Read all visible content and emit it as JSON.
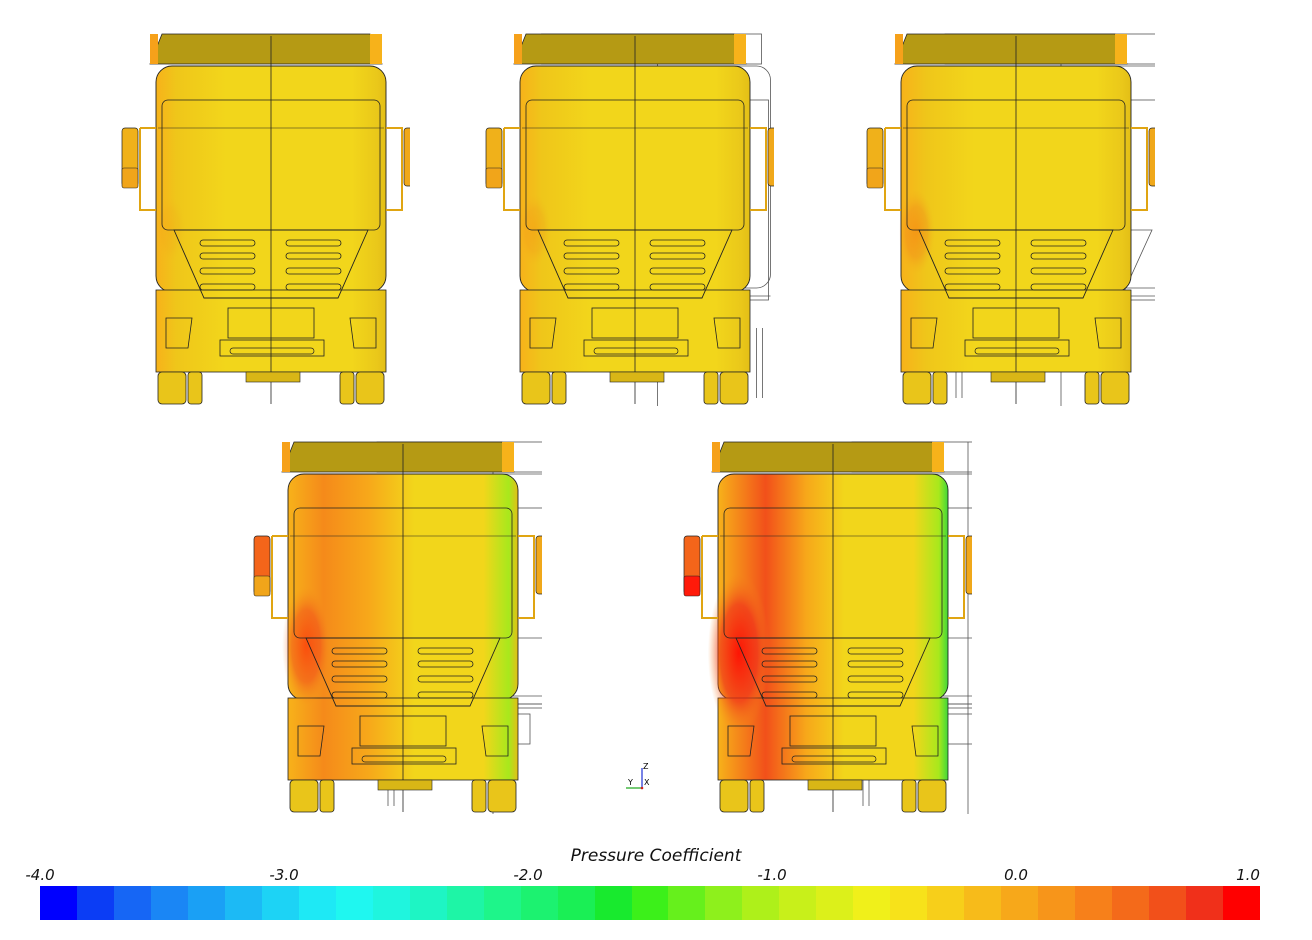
{
  "legend": {
    "title": "Pressure Coefficient",
    "ticks": [
      {
        "value": -4.0,
        "label": "-4.0"
      },
      {
        "value": -3.0,
        "label": "-3.0"
      },
      {
        "value": -2.0,
        "label": "-2.0"
      },
      {
        "value": -1.0,
        "label": "-1.0"
      },
      {
        "value": 0.0,
        "label": "0.0"
      },
      {
        "value": 1.0,
        "label": "1.0"
      }
    ],
    "range": [
      -4.0,
      1.0
    ],
    "colors": [
      "#0000ff",
      "#0b3df5",
      "#1666f5",
      "#1a86f5",
      "#1aa0f5",
      "#1cbaf5",
      "#1dd3f5",
      "#1ee9f5",
      "#1ff7f0",
      "#1ff5de",
      "#1ef5c4",
      "#1ef5a6",
      "#1ef58a",
      "#1cf270",
      "#1aef55",
      "#18ea2e",
      "#3cf01a",
      "#66f01c",
      "#8ef01c",
      "#aef01a",
      "#c8f01a",
      "#dcf01a",
      "#f0f01a",
      "#f7e21a",
      "#f7cf1a",
      "#f7bb1a",
      "#f7a81a",
      "#f7951a",
      "#f7801a",
      "#f46a1a",
      "#f2501a",
      "#f0301a",
      "#ff0000"
    ]
  },
  "axes_triad": {
    "z": "Z",
    "y": "Y",
    "x": "X"
  },
  "panels": [
    {
      "id": "view-1",
      "cab_offset": 0.0,
      "red_intensity": 0.05,
      "green_intensity": 0.0
    },
    {
      "id": "view-2",
      "cab_offset": 0.05,
      "red_intensity": 0.1,
      "green_intensity": 0.0
    },
    {
      "id": "view-3",
      "cab_offset": 0.1,
      "red_intensity": 0.2,
      "green_intensity": 0.0
    },
    {
      "id": "view-4",
      "cab_offset": 0.2,
      "red_intensity": 0.5,
      "green_intensity": 0.35
    },
    {
      "id": "view-5",
      "cab_offset": 0.3,
      "red_intensity": 0.85,
      "green_intensity": 0.6
    }
  ],
  "colors": {
    "cab_base": "#f2d61b",
    "cab_dark": "#e8b513",
    "outline": "#222222",
    "ghost_outline": "#555555"
  }
}
